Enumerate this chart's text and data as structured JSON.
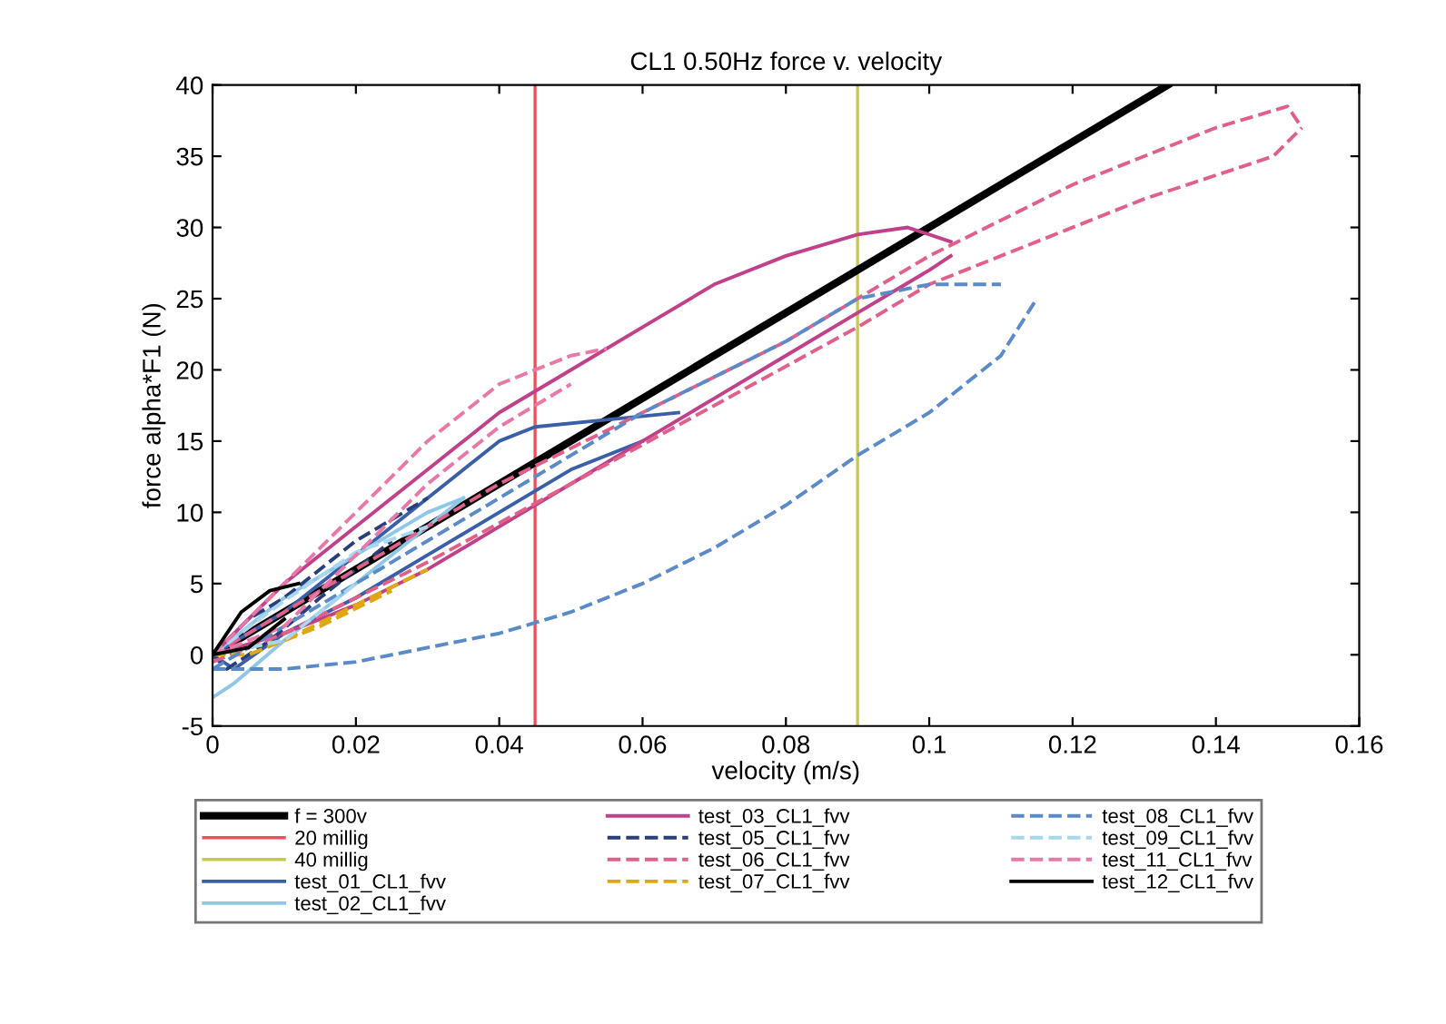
{
  "chart_data": {
    "type": "line",
    "title": "CL1 0.50Hz force v. velocity",
    "xlabel": "velocity (m/s)",
    "ylabel": "force alpha*F1 (N)",
    "xlim": [
      0,
      0.16
    ],
    "ylim": [
      -5,
      40
    ],
    "xticks": [
      0,
      0.02,
      0.04,
      0.06,
      0.08,
      0.1,
      0.12,
      0.14,
      0.16
    ],
    "yticks": [
      -5,
      0,
      5,
      10,
      15,
      20,
      25,
      30,
      35,
      40
    ],
    "grid": false,
    "legend": "bottom",
    "marker": "none",
    "ref_lines": [
      {
        "axis": "x",
        "value": 0.045,
        "label": "20 millig",
        "color": "#e8505a",
        "line_style": "solid"
      },
      {
        "axis": "x",
        "value": 0.09,
        "label": "40 millig",
        "color": "#c8c850",
        "line_style": "solid"
      }
    ],
    "series": [
      {
        "name": "f = 300v",
        "color": "#000000",
        "line_style": "solid",
        "x": [
          0,
          0.1333
        ],
        "values": [
          0,
          40
        ]
      },
      {
        "name": "test_01_CL1_fvv",
        "color": "#3a5fa8",
        "line_style": "solid",
        "x": [
          0,
          0.01,
          0.02,
          0.03,
          0.04,
          0.045,
          0.055,
          0.065
        ],
        "values": [
          0,
          3,
          7,
          11,
          15,
          16,
          16.5,
          17
        ]
      },
      {
        "color": "#3a5fa8",
        "line_style": "solid",
        "x": [
          0,
          0.003,
          0.01,
          0.02,
          0.03,
          0.04,
          0.05,
          0.06
        ],
        "values": [
          0,
          -1,
          1.5,
          4,
          7,
          10,
          13,
          15
        ]
      },
      {
        "name": "test_02_CL1_fvv",
        "color": "#8ec7e8",
        "line_style": "solid",
        "x": [
          0,
          0.005,
          0.01,
          0.02,
          0.03,
          0.035
        ],
        "values": [
          0,
          2,
          4,
          7,
          10,
          11
        ]
      },
      {
        "color": "#8ec7e8",
        "line_style": "solid",
        "x": [
          0,
          0.003,
          0.01,
          0.02,
          0.03,
          0.035
        ],
        "values": [
          -3,
          -2,
          1,
          5,
          9,
          11
        ]
      },
      {
        "name": "test_03_CL1_fvv",
        "color": "#c0408a",
        "line_style": "solid",
        "x": [
          0,
          0.01,
          0.02,
          0.03,
          0.04,
          0.05,
          0.06,
          0.07,
          0.08,
          0.09,
          0.097,
          0.103
        ],
        "values": [
          0,
          5,
          9,
          13,
          17,
          20,
          23,
          26,
          28,
          29.5,
          30,
          29
        ]
      },
      {
        "color": "#c0408a",
        "line_style": "solid",
        "x": [
          0,
          0.01,
          0.02,
          0.03,
          0.04,
          0.05,
          0.06,
          0.07,
          0.08,
          0.09,
          0.1,
          0.103
        ],
        "values": [
          0,
          1.5,
          3.5,
          6,
          9,
          12,
          15,
          18,
          21,
          24,
          27,
          28
        ]
      },
      {
        "name": "test_05_CL1_fvv",
        "color": "#2a3f7a",
        "line_style": "dashed",
        "x": [
          0,
          0.005,
          0.01,
          0.02,
          0.03
        ],
        "values": [
          0,
          2.5,
          4,
          8,
          11
        ]
      },
      {
        "color": "#2a3f7a",
        "line_style": "dashed",
        "x": [
          0,
          0.002,
          0.008,
          0.015,
          0.025
        ],
        "values": [
          0,
          -1,
          1,
          4,
          8
        ]
      },
      {
        "name": "test_06_CL1_fvv",
        "color": "#e0608a",
        "line_style": "dashed",
        "x": [
          0,
          0.02,
          0.04,
          0.06,
          0.08,
          0.09,
          0.1,
          0.12,
          0.14,
          0.15,
          0.152
        ],
        "values": [
          0,
          6,
          12,
          17,
          22,
          25,
          28,
          33,
          37,
          38.5,
          37
        ]
      },
      {
        "color": "#e0608a",
        "line_style": "dashed",
        "x": [
          0,
          0.01,
          0.03,
          0.05,
          0.07,
          0.09,
          0.1,
          0.11,
          0.13,
          0.148,
          0.152
        ],
        "values": [
          -0.5,
          1.5,
          6.5,
          12,
          17.5,
          23,
          26,
          28,
          32,
          35,
          37
        ]
      },
      {
        "name": "test_07_CL1_fvv",
        "color": "#e0a810",
        "line_style": "dashed",
        "x": [
          0,
          0.01,
          0.02,
          0.03
        ],
        "values": [
          0,
          1,
          3.5,
          6
        ]
      },
      {
        "color": "#e0a810",
        "line_style": "dashed",
        "x": [
          0,
          0.005,
          0.015,
          0.025
        ],
        "values": [
          0,
          0,
          2,
          4.5
        ]
      },
      {
        "name": "test_08_CL1_fvv",
        "color": "#5a8ac8",
        "line_style": "dashed",
        "x": [
          0,
          0.01,
          0.02,
          0.03,
          0.04,
          0.05,
          0.06,
          0.07,
          0.08,
          0.09,
          0.1,
          0.11,
          0.115
        ],
        "values": [
          -1,
          -1,
          -0.5,
          0.5,
          1.5,
          3,
          5,
          7.5,
          10.5,
          14,
          17,
          21,
          25
        ]
      },
      {
        "color": "#5a8ac8",
        "line_style": "dashed",
        "x": [
          0,
          0.01,
          0.02,
          0.03,
          0.04,
          0.05,
          0.06,
          0.07,
          0.08,
          0.09,
          0.1,
          0.11
        ],
        "values": [
          -1,
          2,
          5,
          8,
          11,
          14,
          17,
          19.5,
          22,
          25,
          26,
          26
        ]
      },
      {
        "name": "test_09_CL1_fvv",
        "color": "#a8d8f0",
        "line_style": "dashed",
        "x": [
          0,
          0.01,
          0.02,
          0.03
        ],
        "values": [
          0,
          3.8,
          7.2,
          9
        ]
      },
      {
        "color": "#a8d8f0",
        "line_style": "dashed",
        "x": [
          0,
          0.01,
          0.02
        ],
        "values": [
          0,
          1,
          5
        ]
      },
      {
        "name": "test_11_CL1_fvv",
        "color": "#e878a8",
        "line_style": "dashed",
        "x": [
          0,
          0.01,
          0.02,
          0.03,
          0.04,
          0.05,
          0.055
        ],
        "values": [
          0,
          5,
          10,
          15,
          19,
          21,
          21.5
        ]
      },
      {
        "color": "#e878a8",
        "line_style": "dashed",
        "x": [
          0,
          0.01,
          0.02,
          0.03,
          0.04,
          0.05
        ],
        "values": [
          0,
          2,
          7,
          12,
          16,
          19
        ]
      },
      {
        "name": "test_12_CL1_fvv",
        "color": "#000000",
        "line_style": "solid",
        "x": [
          0,
          0.004,
          0.008,
          0.012
        ],
        "values": [
          0,
          3,
          4.5,
          5
        ]
      },
      {
        "color": "#000000",
        "line_style": "solid",
        "x": [
          0,
          0.005,
          0.01
        ],
        "values": [
          0,
          0.5,
          2.5
        ]
      }
    ]
  }
}
